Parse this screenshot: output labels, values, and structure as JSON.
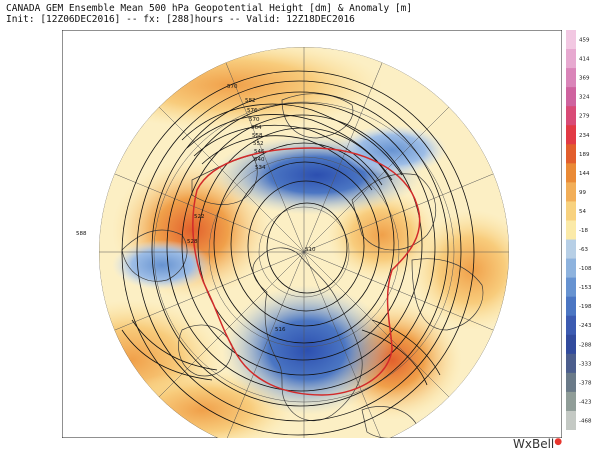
{
  "header": {
    "line1": "CANADA GEM Ensemble Mean 500 hPa Geopotential Height [dm] & Anomaly [m]",
    "line2": "Init: [12Z06DEC2016] -- fx: [288]hours -- Valid: 12Z18DEC2016"
  },
  "brand": {
    "name": "WxBell",
    "mark": "●"
  },
  "colorbar": {
    "ticks": [
      "459",
      "414",
      "369",
      "324",
      "279",
      "234",
      "189",
      "144",
      "99",
      "54",
      "-18",
      "-63",
      "-108",
      "-153",
      "-198",
      "-243",
      "-288",
      "-333",
      "-378",
      "-423",
      "-468"
    ],
    "colors": [
      "#f2c8e2",
      "#e7a9d0",
      "#da85b9",
      "#cf639f",
      "#d94b77",
      "#e23a45",
      "#e25e2d",
      "#ea8a36",
      "#f2ae58",
      "#f8d27f",
      "#fbeaa8",
      "#b7cfe6",
      "#8eb3de",
      "#6793d1",
      "#4b76c3",
      "#3c5bb1",
      "#324b9d",
      "#4c5e8d",
      "#6a7a88",
      "#909d98",
      "#c4c9c4"
    ]
  },
  "map": {
    "contour_labels": [
      "582",
      "576",
      "570",
      "564",
      "558",
      "552",
      "546",
      "540",
      "534",
      "528",
      "522",
      "516",
      "510",
      "570",
      "588"
    ],
    "anomaly_colors": {
      "positive": "#f4a24a",
      "positive_light": "#fbe3a0",
      "negative": "#3c63c5",
      "negative_light": "#9dbde6",
      "freezing_line": "#d22a2a"
    }
  }
}
